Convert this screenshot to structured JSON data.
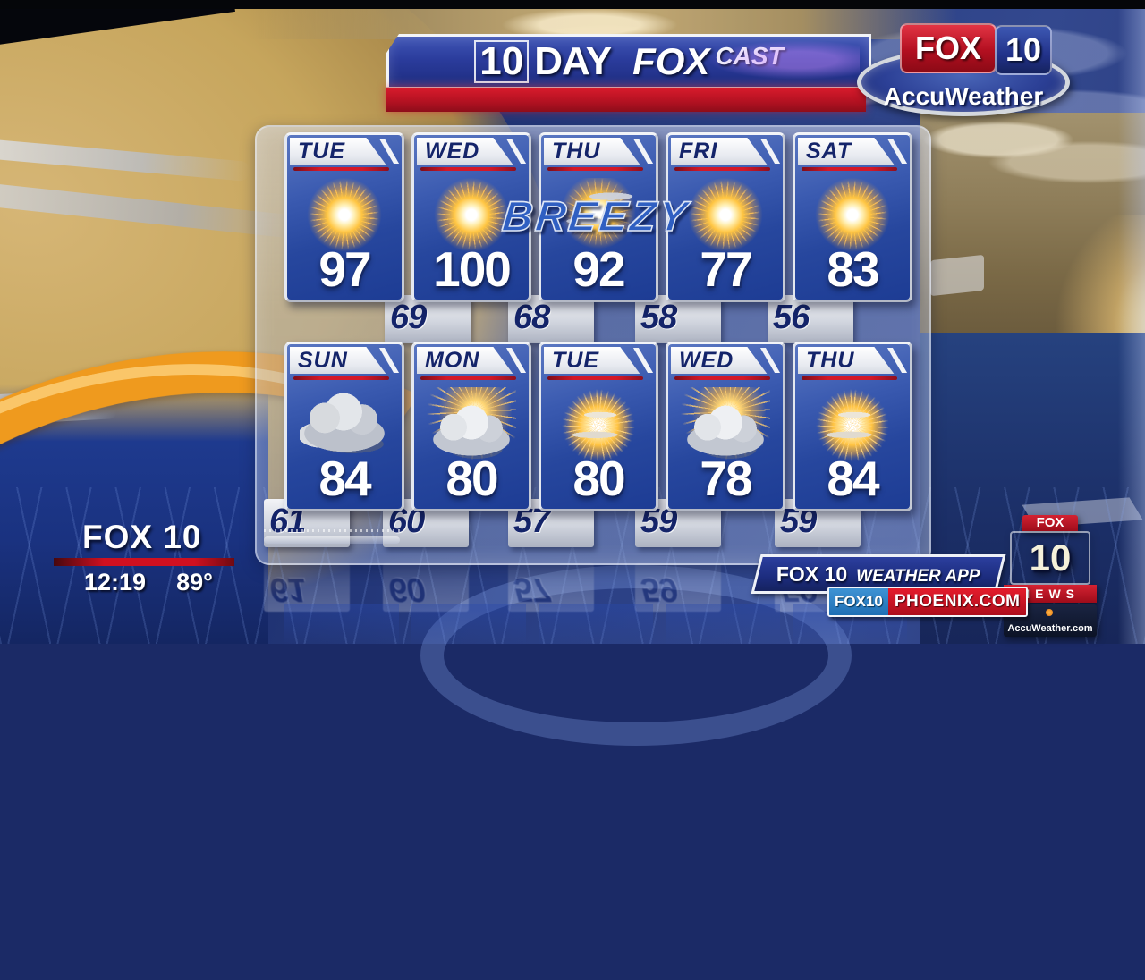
{
  "banner": {
    "ten": "10",
    "day": "DAY",
    "fox": "FOX",
    "cast": "CAST"
  },
  "accuweather_logo": {
    "fox": "FOX",
    "ten": "10",
    "name": "AccuWeather"
  },
  "annotation": "BREEZY",
  "forecast": {
    "row1": {
      "days": [
        {
          "day": "TUE",
          "high": "97",
          "icon": "sunny"
        },
        {
          "day": "WED",
          "high": "100",
          "icon": "sunny"
        },
        {
          "day": "THU",
          "high": "92",
          "icon": "sunny-breezy"
        },
        {
          "day": "FRI",
          "high": "77",
          "icon": "sunny"
        },
        {
          "day": "SAT",
          "high": "83",
          "icon": "sunny"
        }
      ],
      "lows": [
        "69",
        "68",
        "58",
        "56"
      ]
    },
    "row2": {
      "days": [
        {
          "day": "SUN",
          "high": "84",
          "icon": "cloudy"
        },
        {
          "day": "MON",
          "high": "80",
          "icon": "partly-cloudy"
        },
        {
          "day": "TUE",
          "high": "80",
          "icon": "mostly-sunny"
        },
        {
          "day": "WED",
          "high": "78",
          "icon": "partly-cloudy"
        },
        {
          "day": "THU",
          "high": "84",
          "icon": "mostly-sunny"
        }
      ],
      "lows": [
        "61",
        "60",
        "57",
        "59",
        "59"
      ]
    }
  },
  "station_bug": {
    "station": "FOX 10",
    "time": "12:19",
    "temperature": "89°"
  },
  "promo": {
    "station": "FOX 10",
    "label": "WEATHER APP",
    "site_prefix": "FOX10",
    "site_domain": "PHOENIX.COM"
  },
  "corner_logo": {
    "fox": "FOX",
    "ten": "10",
    "news": "NEWS",
    "site": "AccuWeather.com"
  },
  "colors": {
    "card_blue_top": "#5a77c2",
    "card_blue_bottom": "#1d3c94",
    "accent_red": "#c41425",
    "day_text": "#14246a",
    "gold": "#c6a55c",
    "floor_blue": "#1e3a8e",
    "orange_swoosh": "#ef9a1e"
  }
}
